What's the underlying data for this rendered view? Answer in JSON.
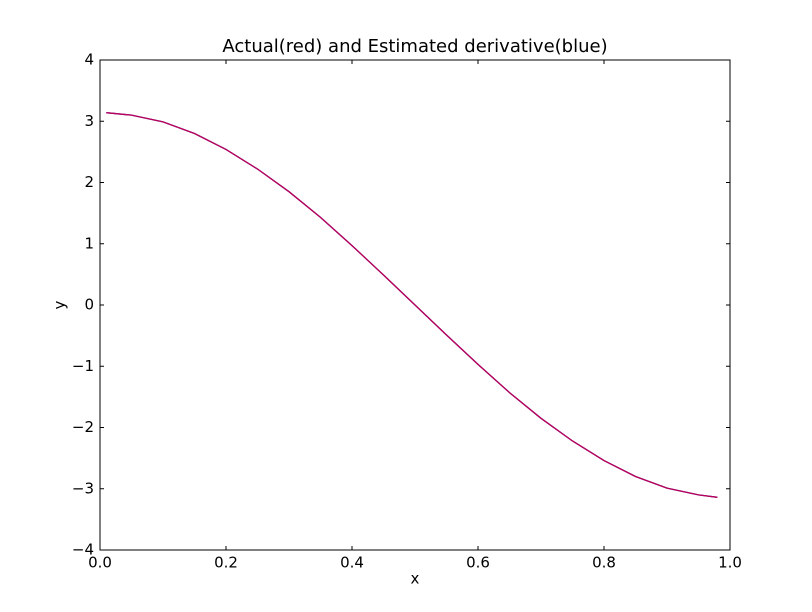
{
  "chart_data": {
    "type": "line",
    "title": "Actual(red) and Estimated derivative(blue)",
    "x_label": "x",
    "y_label": "y",
    "x": [
      0.01,
      0.05,
      0.1,
      0.15,
      0.2,
      0.25,
      0.3,
      0.35,
      0.4,
      0.45,
      0.5,
      0.55,
      0.6,
      0.65,
      0.7,
      0.75,
      0.8,
      0.85,
      0.9,
      0.95,
      0.98
    ],
    "series": [
      {
        "color": "#0000ff",
        "values": [
          3.14,
          3.1,
          2.99,
          2.8,
          2.54,
          2.22,
          1.85,
          1.43,
          0.97,
          0.49,
          0,
          -0.49,
          -0.97,
          -1.43,
          -1.85,
          -2.22,
          -2.54,
          -2.8,
          -2.99,
          -3.1,
          -3.14
        ]
      },
      {
        "color": "#dd0033",
        "values": [
          3.14,
          3.1,
          2.99,
          2.8,
          2.54,
          2.22,
          1.85,
          1.43,
          0.97,
          0.49,
          0,
          -0.49,
          -0.97,
          -1.43,
          -1.85,
          -2.22,
          -2.54,
          -2.8,
          -2.99,
          -3.1,
          -3.14
        ]
      }
    ],
    "xlim": [
      0,
      1
    ],
    "ylim": [
      -4,
      4
    ],
    "xticks": [
      {
        "value": 0,
        "label": "0.0"
      },
      0.2,
      0.4,
      0.6,
      0.8,
      {
        "value": 1,
        "label": "1.0"
      }
    ],
    "yticks": [
      {
        "value": -4,
        "label": "−4"
      },
      {
        "value": -3,
        "label": "−3"
      },
      {
        "value": -2,
        "label": "−2"
      },
      {
        "value": -1,
        "label": "−1"
      },
      0,
      1,
      2,
      3,
      4
    ],
    "grid": false
  }
}
